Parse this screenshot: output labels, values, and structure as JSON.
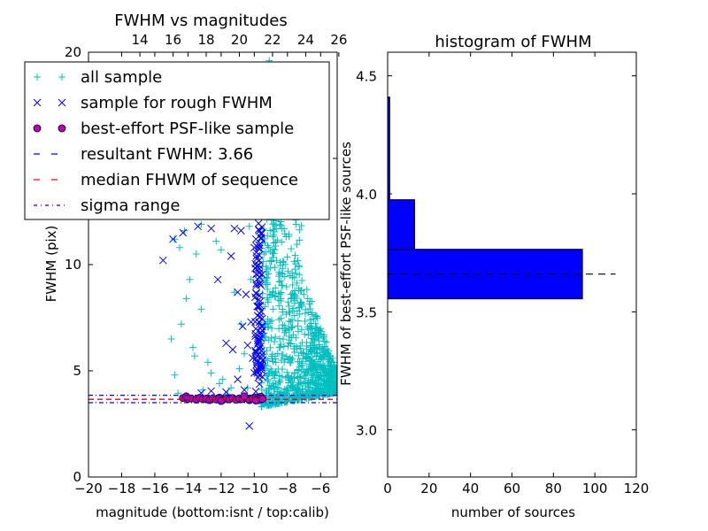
{
  "chart_data": [
    {
      "type": "scatter",
      "title": "FWHM vs magnitudes",
      "xlabel": "magnitude (bottom:isnt / top:calib)",
      "ylabel": "FWHM (pix)",
      "xlim": [
        -20,
        -5
      ],
      "ylim": [
        0,
        20
      ],
      "x_ticks": [
        "−20",
        "−18",
        "−16",
        "−14",
        "−12",
        "−10",
        "−8",
        "−6"
      ],
      "x_tick_values": [
        -20,
        -18,
        -16,
        -14,
        -12,
        -10,
        -8,
        -6
      ],
      "top_x_ticks": [
        "14",
        "16",
        "18",
        "20",
        "22",
        "24",
        "26"
      ],
      "top_x_tick_values": [
        -16.9,
        -14.9,
        -12.9,
        -10.9,
        -8.9,
        -6.9,
        -4.9
      ],
      "y_ticks": [
        "0",
        "5",
        "10",
        "15",
        "20"
      ],
      "y_tick_values": [
        0,
        5,
        10,
        15,
        20
      ],
      "legend_position": "top-left",
      "legend": [
        {
          "label": "all sample",
          "marker": "plus",
          "color": "#00bfbf"
        },
        {
          "label": "sample for rough FWHM",
          "marker": "x",
          "color": "#0000ff"
        },
        {
          "label": "best-effort PSF-like sample",
          "marker": "circle",
          "color": "#bf00bf"
        },
        {
          "label": "resultant FWHM: 3.66",
          "marker": "dashed",
          "color": "#0000ff"
        },
        {
          "label": "median FHWM of sequence",
          "marker": "dashed",
          "color": "#ff0000"
        },
        {
          "label": "sigma range",
          "marker": "dashdot",
          "color": "#0000ff"
        }
      ],
      "hlines": [
        {
          "name": "resultant FWHM",
          "y": 3.66,
          "style": "dashed",
          "color": "#0000ff"
        },
        {
          "name": "median FHWM of sequence",
          "y": 3.66,
          "style": "dashed",
          "color": "#ff0000"
        },
        {
          "name": "sigma range upper",
          "y": 3.85,
          "style": "dashdot",
          "color": "#0000ff"
        },
        {
          "name": "sigma range lower",
          "y": 3.5,
          "style": "dashdot",
          "color": "#0000ff"
        }
      ],
      "series": [
        {
          "name": "all sample",
          "marker": "plus",
          "color": "#00bfbf",
          "points": [
            [
              -14.8,
              11.2
            ],
            [
              -14.5,
              10.8
            ],
            [
              -14.2,
              11.6
            ],
            [
              -13.5,
              10.5
            ],
            [
              -13.2,
              11.9
            ],
            [
              -12.3,
              11.1
            ],
            [
              -12.0,
              10.7
            ],
            [
              -14.4,
              7.2
            ],
            [
              -13.7,
              6.1
            ],
            [
              -13.2,
              7.9
            ],
            [
              -12.8,
              5.4
            ],
            [
              -12.6,
              4.9
            ],
            [
              -11.9,
              4.6
            ],
            [
              -11.4,
              4.2
            ],
            [
              -10.9,
              5.1
            ],
            [
              -10.8,
              7.2
            ],
            [
              -10.6,
              5.8
            ],
            [
              -10.4,
              4.2
            ],
            [
              -10.2,
              9.3
            ],
            [
              -14.8,
              4.8
            ],
            [
              -15.0,
              6.5
            ],
            [
              -14.6,
              3.95
            ],
            [
              -13.1,
              4.1
            ],
            [
              -12.1,
              4.4
            ],
            [
              -11.6,
              3.9
            ],
            [
              -10.3,
              11.8
            ],
            [
              -10.6,
              12.6
            ],
            [
              -10.1,
              13.4
            ],
            [
              -11.2,
              8.7
            ],
            [
              -13.9,
              9.3
            ],
            [
              -14.1,
              8.4
            ],
            [
              -13.6,
              5.7
            ],
            [
              -9.1,
              19.6
            ],
            [
              -8.5,
              19.4
            ],
            [
              -7.8,
              19.1
            ],
            [
              -6.9,
              18.6
            ],
            [
              -9.4,
              18.8
            ],
            [
              -7.2,
              17.2
            ],
            [
              -8.1,
              16.9
            ]
          ]
        },
        {
          "name": "sample for rough FWHM",
          "marker": "x",
          "color": "#0000ff",
          "points": [
            [
              -15.5,
              10.2
            ],
            [
              -14.9,
              11.2
            ],
            [
              -14.3,
              11.5
            ],
            [
              -13.4,
              11.8
            ],
            [
              -12.6,
              11.7
            ],
            [
              -12.2,
              9.3
            ],
            [
              -11.4,
              10.4
            ],
            [
              -11.2,
              11.7
            ],
            [
              -11.0,
              8.7
            ],
            [
              -11.7,
              6.3
            ],
            [
              -11.3,
              6.0
            ],
            [
              -11.0,
              4.6
            ],
            [
              -10.8,
              11.6
            ],
            [
              -10.5,
              8.6
            ],
            [
              -10.7,
              7.1
            ],
            [
              -10.4,
              6.2
            ],
            [
              -10.2,
              7.3
            ],
            [
              -10.1,
              5.6
            ],
            [
              -10.0,
              4.9
            ],
            [
              -10.6,
              4.1
            ],
            [
              -10.3,
              2.4
            ],
            [
              -11.7,
              4.0
            ],
            [
              -12.6,
              4.05
            ],
            [
              -13.2,
              3.95
            ],
            [
              -9.9,
              11.2
            ],
            [
              -9.7,
              9.8
            ],
            [
              -9.8,
              8.3
            ],
            [
              -9.6,
              6.7
            ],
            [
              -9.9,
              5.9
            ],
            [
              -9.7,
              4.8
            ],
            [
              -10.0,
              10.8
            ],
            [
              -9.8,
              7.6
            ],
            [
              -9.6,
              5.3
            ]
          ]
        },
        {
          "name": "best-effort PSF-like sample",
          "marker": "circle",
          "color": "#bf00bf",
          "points": [
            [
              -14.3,
              3.72
            ],
            [
              -14.0,
              3.68
            ],
            [
              -13.8,
              3.7
            ],
            [
              -13.5,
              3.64
            ],
            [
              -13.3,
              3.73
            ],
            [
              -13.1,
              3.66
            ],
            [
              -12.9,
              3.69
            ],
            [
              -12.7,
              3.62
            ],
            [
              -12.5,
              3.71
            ],
            [
              -12.3,
              3.65
            ],
            [
              -12.1,
              3.74
            ],
            [
              -11.9,
              3.63
            ],
            [
              -11.7,
              3.69
            ],
            [
              -11.5,
              3.66
            ],
            [
              -11.3,
              3.72
            ],
            [
              -11.1,
              3.64
            ],
            [
              -10.9,
              3.7
            ],
            [
              -10.7,
              3.67
            ],
            [
              -10.5,
              3.73
            ],
            [
              -10.3,
              3.62
            ],
            [
              -10.1,
              3.69
            ],
            [
              -9.9,
              3.75
            ],
            [
              -9.8,
              3.65
            ],
            [
              -9.7,
              3.71
            ],
            [
              -9.6,
              3.78
            ],
            [
              -9.5,
              3.68
            ],
            [
              -14.1,
              3.8
            ],
            [
              -12.0,
              3.58
            ],
            [
              -10.6,
              3.8
            ],
            [
              -9.9,
              3.6
            ]
          ]
        }
      ]
    },
    {
      "type": "bar",
      "orientation": "horizontal",
      "title": "histogram of FWHM",
      "xlabel": "number of sources",
      "ylabel": "FWHM of best-effort PSF-like sources",
      "xlim": [
        0,
        120
      ],
      "ylim": [
        2.8,
        4.6
      ],
      "x_ticks": [
        "0",
        "20",
        "40",
        "60",
        "80",
        "100",
        "120"
      ],
      "x_tick_values": [
        0,
        20,
        40,
        60,
        80,
        100,
        120
      ],
      "y_ticks": [
        "3.0",
        "3.5",
        "4.0",
        "4.5"
      ],
      "y_tick_values": [
        3.0,
        3.5,
        4.0,
        4.5
      ],
      "bins": [
        {
          "y0": 3.555,
          "y1": 3.765,
          "count": 94
        },
        {
          "y0": 3.765,
          "y1": 3.975,
          "count": 13
        },
        {
          "y0": 3.975,
          "y1": 4.41,
          "count": 1
        }
      ],
      "bar_color": "#0000ff",
      "hline": {
        "y": 3.66,
        "style": "dashed",
        "color": "#000000"
      }
    }
  ]
}
